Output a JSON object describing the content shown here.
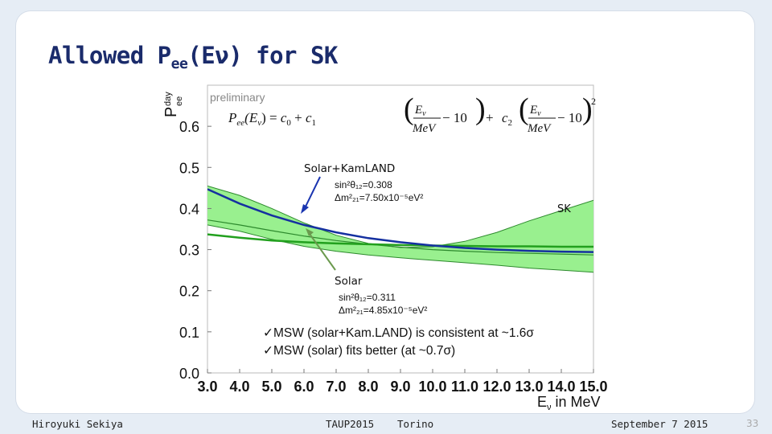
{
  "slide": {
    "title_main": "Allowed P",
    "title_sub": "ee",
    "title_rest": "(Eν) for SK"
  },
  "footer": {
    "author": "Hiroyuki Sekiya",
    "conference": "TAUP2015",
    "city": "Torino",
    "date": "September 7 2015",
    "page": "33"
  },
  "colors": {
    "background": "#e6edf5",
    "title": "#1a2b6b",
    "band_fill": "#99f08f",
    "band_edge": "#2d8a2d",
    "solar_kamland_curve": "#1530a0",
    "solar_curve": "#22a01e",
    "solar_arrow": "#6b9a4e"
  },
  "chart_data": {
    "type": "line",
    "ylabel_main": "P",
    "ylabel_sup": "day",
    "ylabel_sub": "ee",
    "xlabel_main": "E",
    "xlabel_sub": "ν",
    "xlabel_rest": " in MeV",
    "xlim": [
      3.0,
      15.0
    ],
    "ylim": [
      0.0,
      0.7
    ],
    "x_ticks": [
      "3.0",
      "4.0",
      "5.0",
      "6.0",
      "7.0",
      "8.0",
      "9.0",
      "10.0",
      "11.0",
      "12.0",
      "13.0",
      "14.0",
      "15.0"
    ],
    "x_tick_values": [
      3,
      4,
      5,
      6,
      7,
      8,
      9,
      10,
      11,
      12,
      13,
      14,
      15
    ],
    "y_ticks": [
      "0.0",
      "0.1",
      "0.2",
      "0.3",
      "0.4",
      "0.5",
      "0.6"
    ],
    "y_tick_values": [
      0.0,
      0.1,
      0.2,
      0.3,
      0.4,
      0.5,
      0.6
    ],
    "preliminary_label": "preliminary",
    "formula": {
      "lhs": "P",
      "lhs_sub": "ee",
      "lhs_arg": "(E",
      "lhs_arg_sub": "ν",
      "lhs_close": ") = ",
      "c0": "c",
      "c0_sub": "0",
      "plus1": " + ",
      "c1": "c",
      "c1_sub": "1",
      "E": "E",
      "E_sub": "ν",
      "unit": "MeV",
      "minus": " − 10",
      "plus2": " + ",
      "c2": "c",
      "c2_sub": "2",
      "sq": "2"
    },
    "band": {
      "name": "SK",
      "x": [
        3,
        4,
        5,
        6,
        7,
        8,
        9,
        10,
        11,
        12,
        13,
        14,
        15
      ],
      "upper": [
        0.455,
        0.432,
        0.4,
        0.365,
        0.335,
        0.315,
        0.305,
        0.307,
        0.32,
        0.342,
        0.37,
        0.395,
        0.42
      ],
      "lower": [
        0.36,
        0.345,
        0.325,
        0.308,
        0.296,
        0.287,
        0.28,
        0.274,
        0.268,
        0.262,
        0.255,
        0.25,
        0.245
      ],
      "central": [
        0.372,
        0.36,
        0.346,
        0.333,
        0.322,
        0.313,
        0.306,
        0.3,
        0.296,
        0.293,
        0.291,
        0.289,
        0.287
      ]
    },
    "series": [
      {
        "name": "Solar+KamLAND",
        "x": [
          3,
          4,
          5,
          6,
          7,
          8,
          9,
          10,
          11,
          12,
          13,
          14,
          15
        ],
        "values": [
          0.447,
          0.412,
          0.383,
          0.36,
          0.342,
          0.328,
          0.318,
          0.31,
          0.304,
          0.3,
          0.297,
          0.295,
          0.294
        ],
        "param1": "sin²θ₁₂=0.308",
        "param2": "Δm²₂₁=7.50x10⁻⁵eV²"
      },
      {
        "name": "Solar",
        "x": [
          3,
          4,
          5,
          6,
          7,
          8,
          9,
          10,
          11,
          12,
          13,
          14,
          15
        ],
        "values": [
          0.337,
          0.329,
          0.322,
          0.318,
          0.315,
          0.313,
          0.311,
          0.31,
          0.309,
          0.308,
          0.308,
          0.307,
          0.307
        ],
        "param1": "sin²θ₁₂=0.311",
        "param2": "Δm²₂₁=4.85x10⁻⁵eV²"
      }
    ],
    "notes": [
      "✓MSW (solar+Kam.LAND) is consistent at ~1.6σ",
      "✓MSW (solar) fits better (at ~0.7σ)"
    ]
  }
}
